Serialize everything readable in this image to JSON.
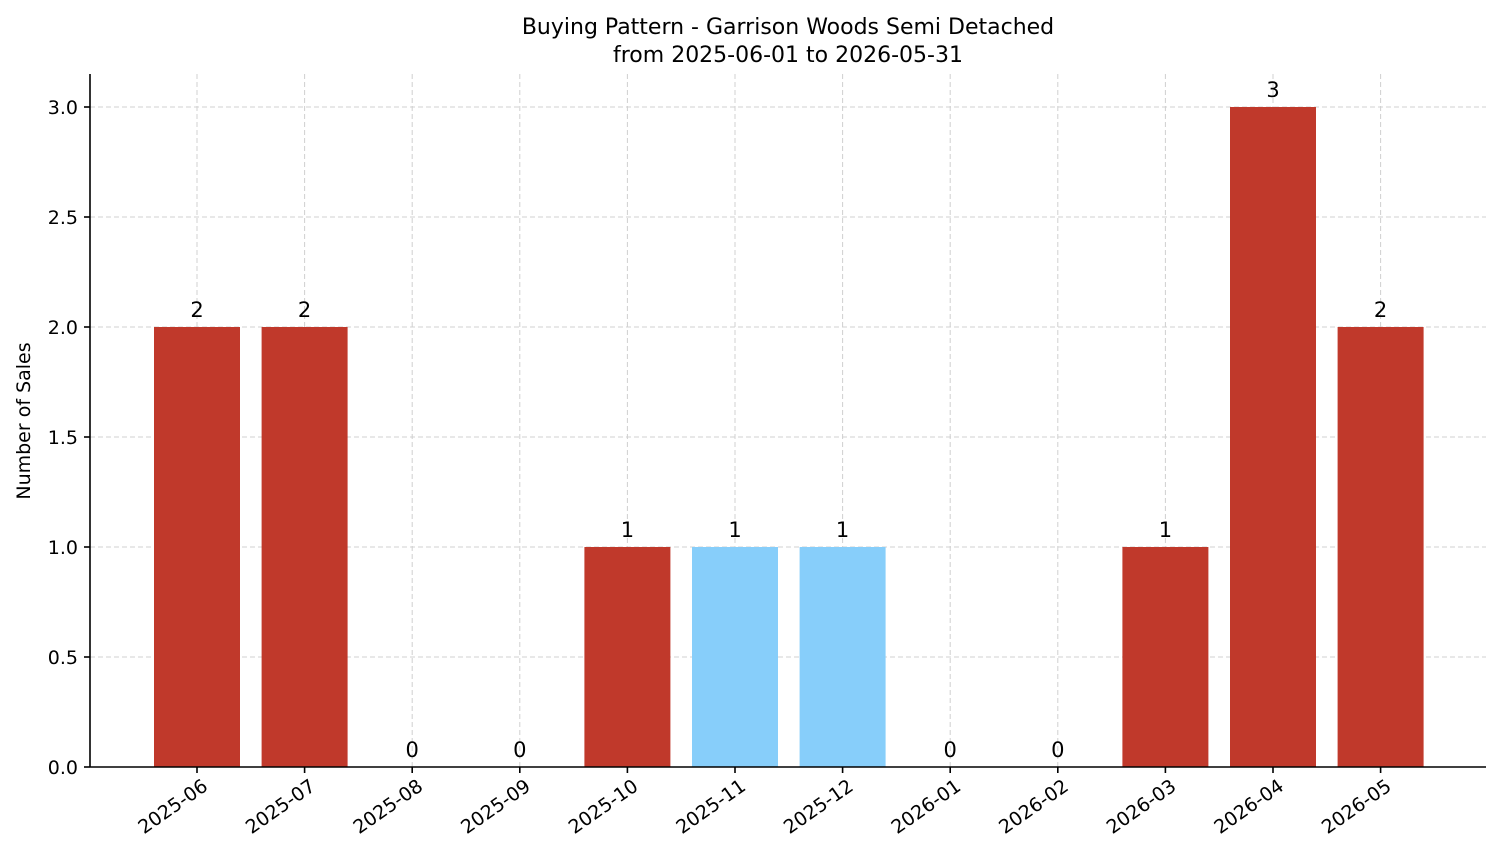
{
  "chart_data": {
    "type": "bar",
    "title_line1": "Buying Pattern - Garrison Woods Semi Detached",
    "title_line2": "from 2025-06-01 to 2026-05-31",
    "xlabel": "",
    "ylabel": "Number of Sales",
    "categories": [
      "2025-06",
      "2025-07",
      "2025-08",
      "2025-09",
      "2025-10",
      "2025-11",
      "2025-12",
      "2026-01",
      "2026-02",
      "2026-03",
      "2026-04",
      "2026-05"
    ],
    "values": [
      2,
      2,
      0,
      0,
      1,
      1,
      1,
      0,
      0,
      1,
      3,
      2
    ],
    "bar_colors": [
      "#c0392b",
      "#c0392b",
      "#c0392b",
      "#c0392b",
      "#c0392b",
      "#87cefa",
      "#87cefa",
      "#c0392b",
      "#c0392b",
      "#c0392b",
      "#c0392b",
      "#c0392b"
    ],
    "data_labels": [
      "2",
      "2",
      "0",
      "0",
      "1",
      "1",
      "1",
      "0",
      "0",
      "1",
      "3",
      "2"
    ],
    "ylim": [
      0,
      3.15
    ],
    "yticks": [
      0.0,
      0.5,
      1.0,
      1.5,
      2.0,
      2.5,
      3.0
    ],
    "ytick_labels": [
      "0.0",
      "0.5",
      "1.0",
      "1.5",
      "2.0",
      "2.5",
      "3.0"
    ],
    "grid": true,
    "legend": "none"
  }
}
